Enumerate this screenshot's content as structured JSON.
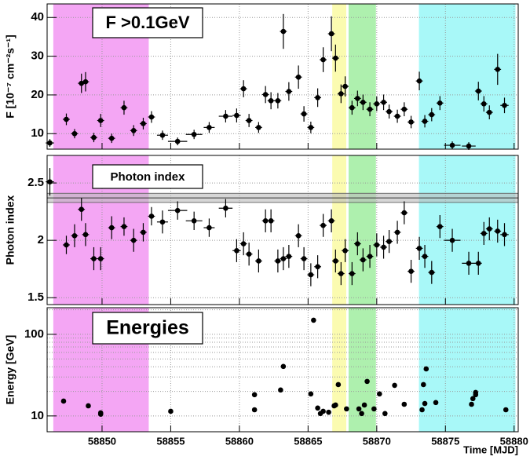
{
  "chart_data": [
    {
      "type": "scatter",
      "title": "F >0.1GeV",
      "ylabel": "F [10⁻⁷ cm⁻²s⁻¹]",
      "color": "#000000",
      "grid": true,
      "xlim": [
        58846,
        58880.3
      ],
      "xticks": [
        58850,
        58855,
        58860,
        58865,
        58870,
        58875,
        58880
      ],
      "ylim": [
        6,
        43.5
      ],
      "yticks": [
        10,
        20,
        30,
        40
      ],
      "bands": [
        {
          "start": 58846.45,
          "end": 58853.4,
          "color": "#f4a6f4"
        },
        {
          "start": 58866.76,
          "end": 58867.78,
          "color": "#fbfbb0"
        },
        {
          "start": 58867.95,
          "end": 58869.94,
          "color": "#aef0ae"
        },
        {
          "start": 58873.07,
          "end": 58880.1,
          "color": "#a8f8f8"
        }
      ],
      "x": [
        58846.2,
        58847.4,
        58848.0,
        58848.5,
        58848.8,
        58849.4,
        58849.9,
        58850.7,
        58851.6,
        58852.3,
        58853.0,
        58853.6,
        58854.4,
        58855.5,
        58856.7,
        58857.8,
        58859.0,
        58859.8,
        58860.3,
        58860.7,
        58861.4,
        58861.9,
        58862.3,
        58862.8,
        58863.2,
        58863.6,
        58864.3,
        58864.7,
        58865.2,
        58865.7,
        58866.1,
        58866.7,
        58867.0,
        58867.4,
        58867.7,
        58868.2,
        58868.6,
        58869.0,
        58869.5,
        58870.0,
        58870.5,
        58870.9,
        58871.5,
        58872.0,
        58872.5,
        58873.1,
        58873.5,
        58874.0,
        58874.6,
        58875.5,
        58876.7,
        58877.4,
        58877.8,
        58878.2,
        58878.8,
        58879.3
      ],
      "x_err": [
        0.3,
        0.25,
        0.25,
        0.25,
        0.25,
        0.25,
        0.25,
        0.25,
        0.25,
        0.25,
        0.25,
        0.25,
        0.4,
        0.7,
        0.6,
        0.4,
        0.5,
        0.3,
        0.25,
        0.25,
        0.25,
        0.25,
        0.25,
        0.25,
        0.25,
        0.25,
        0.25,
        0.25,
        0.25,
        0.25,
        0.25,
        0.25,
        0.25,
        0.25,
        0.25,
        0.25,
        0.25,
        0.25,
        0.25,
        0.25,
        0.25,
        0.25,
        0.25,
        0.25,
        0.25,
        0.25,
        0.25,
        0.25,
        0.25,
        0.6,
        0.5,
        0.25,
        0.25,
        0.25,
        0.25,
        0.3
      ],
      "values": [
        7.6,
        13.7,
        10.0,
        23.0,
        23.4,
        9.0,
        13.4,
        8.8,
        16.7,
        10.8,
        12.6,
        14.3,
        9.6,
        8.0,
        9.8,
        11.6,
        14.5,
        14.7,
        21.6,
        13.4,
        11.6,
        20.1,
        18.5,
        18.5,
        36.4,
        20.9,
        24.6,
        15.1,
        11.6,
        19.3,
        29.1,
        35.8,
        29.5,
        20.3,
        22.2,
        16.7,
        19.1,
        18.1,
        16.3,
        17.7,
        18.1,
        15.7,
        14.5,
        16.3,
        13.0,
        23.6,
        13.2,
        14.9,
        17.9,
        7.0,
        6.8,
        21.0,
        17.7,
        15.5,
        26.6,
        17.3
      ],
      "errors": [
        1,
        1.5,
        1.2,
        2.5,
        2.5,
        1.2,
        1.7,
        1.2,
        1.8,
        1.4,
        1.5,
        1.5,
        1.2,
        1,
        1.2,
        1.4,
        1.6,
        1.8,
        2.2,
        1.7,
        1.4,
        2.2,
        2.2,
        2,
        4.5,
        2.4,
        3,
        2,
        1.5,
        2.4,
        3.2,
        4.5,
        3.5,
        2.4,
        2.6,
        1.8,
        2,
        2,
        1.8,
        1.9,
        2,
        1.8,
        1.7,
        1.8,
        1.6,
        2.4,
        1.6,
        1.7,
        1.8,
        1,
        1,
        2.4,
        2,
        1.8,
        4,
        2
      ]
    },
    {
      "type": "scatter",
      "title": "Photon index",
      "ylabel": "Photon index",
      "color": "#000000",
      "grid": true,
      "xlim": [
        58846,
        58880.3
      ],
      "xticks": [
        58850,
        58855,
        58860,
        58865,
        58870,
        58875,
        58880
      ],
      "ylim": [
        1.44,
        2.74
      ],
      "yticks": [
        1.5,
        2,
        2.5
      ],
      "bands": [
        {
          "start": 58846.45,
          "end": 58853.4,
          "color": "#f4a6f4"
        },
        {
          "start": 58866.76,
          "end": 58867.78,
          "color": "#fbfbb0"
        },
        {
          "start": 58867.95,
          "end": 58869.94,
          "color": "#aef0ae"
        },
        {
          "start": 58873.07,
          "end": 58880.1,
          "color": "#a8f8f8"
        }
      ],
      "mean": 2.37,
      "mean_err": 0.04,
      "x": [
        58846.2,
        58847.4,
        58848.0,
        58848.5,
        58848.8,
        58849.4,
        58849.9,
        58850.7,
        58851.6,
        58852.3,
        58853.0,
        58853.6,
        58854.4,
        58855.5,
        58856.7,
        58857.8,
        58859.0,
        58859.8,
        58860.3,
        58860.7,
        58861.4,
        58861.9,
        58862.3,
        58862.8,
        58863.2,
        58863.6,
        58864.3,
        58864.7,
        58865.2,
        58865.7,
        58866.1,
        58866.7,
        58867.0,
        58867.4,
        58867.7,
        58868.2,
        58868.6,
        58869.0,
        58869.5,
        58870.0,
        58870.5,
        58870.9,
        58871.5,
        58872.0,
        58872.5,
        58873.1,
        58873.5,
        58874.0,
        58874.6,
        58875.5,
        58876.7,
        58877.4,
        58877.8,
        58878.2,
        58878.8,
        58879.3
      ],
      "x_err": [
        0.3,
        0.25,
        0.25,
        0.25,
        0.25,
        0.25,
        0.25,
        0.25,
        0.25,
        0.25,
        0.25,
        0.25,
        0.4,
        0.7,
        0.6,
        0.4,
        0.5,
        0.3,
        0.25,
        0.25,
        0.25,
        0.25,
        0.25,
        0.25,
        0.25,
        0.25,
        0.25,
        0.25,
        0.25,
        0.25,
        0.25,
        0.25,
        0.25,
        0.25,
        0.25,
        0.25,
        0.25,
        0.25,
        0.25,
        0.25,
        0.25,
        0.25,
        0.25,
        0.25,
        0.25,
        0.25,
        0.25,
        0.25,
        0.25,
        0.6,
        0.5,
        0.25,
        0.25,
        0.25,
        0.25,
        0.3
      ],
      "values": [
        2.51,
        1.96,
        2.04,
        2.27,
        2.05,
        1.84,
        1.84,
        2.11,
        2.12,
        2.0,
        2.07,
        2.21,
        2.16,
        2.26,
        2.17,
        2.11,
        2.28,
        1.91,
        1.97,
        1.88,
        1.82,
        2.17,
        2.17,
        1.82,
        1.84,
        1.86,
        2.04,
        1.84,
        1.7,
        1.77,
        2.13,
        2.17,
        1.82,
        1.71,
        1.91,
        1.71,
        1.97,
        1.83,
        1.86,
        1.96,
        1.94,
        1.99,
        2.07,
        2.24,
        1.73,
        1.93,
        1.86,
        1.72,
        2.12,
        2.0,
        1.8,
        1.8,
        2.06,
        2.1,
        2.08,
        2.05
      ],
      "errors": [
        0.12,
        0.08,
        0.1,
        0.1,
        0.1,
        0.1,
        0.1,
        0.1,
        0.08,
        0.1,
        0.08,
        0.08,
        0.1,
        0.08,
        0.08,
        0.08,
        0.08,
        0.1,
        0.1,
        0.1,
        0.1,
        0.1,
        0.1,
        0.1,
        0.1,
        0.1,
        0.1,
        0.1,
        0.1,
        0.1,
        0.1,
        0.1,
        0.1,
        0.1,
        0.1,
        0.1,
        0.1,
        0.1,
        0.1,
        0.1,
        0.1,
        0.1,
        0.1,
        0.1,
        0.1,
        0.1,
        0.1,
        0.1,
        0.1,
        0.1,
        0.1,
        0.1,
        0.1,
        0.1,
        0.1,
        0.1
      ]
    },
    {
      "type": "scatter",
      "title": "Energies",
      "ylabel": "Energy [GeV]",
      "xlabel": "Time [MJD]",
      "color": "#000000",
      "grid": true,
      "log_y": true,
      "xlim": [
        58846,
        58880.3
      ],
      "xticks": [
        58850,
        58855,
        58860,
        58865,
        58870,
        58875,
        58880
      ],
      "ylim": [
        6.4,
        212
      ],
      "yticks": [
        10,
        100
      ],
      "minor_yticks": [
        20,
        30,
        40,
        50,
        60,
        70,
        80,
        90,
        200
      ],
      "bands": [
        {
          "start": 58846.45,
          "end": 58853.4,
          "color": "#f4a6f4"
        },
        {
          "start": 58866.76,
          "end": 58867.78,
          "color": "#fbfbb0"
        },
        {
          "start": 58867.95,
          "end": 58869.94,
          "color": "#aef0ae"
        },
        {
          "start": 58873.07,
          "end": 58880.1,
          "color": "#a8f8f8"
        }
      ],
      "x": [
        58847.2,
        58849.0,
        58849.9,
        58849.9,
        58855.0,
        58861.1,
        58861.1,
        58863.0,
        58863.2,
        58865.2,
        58865.4,
        58865.7,
        58865.9,
        58866.1,
        58866.5,
        58866.9,
        58867.0,
        58867.2,
        58867.8,
        58868.7,
        58868.9,
        58869.1,
        58869.3,
        58869.8,
        58870.2,
        58870.6,
        58871.3,
        58872.0,
        58873.3,
        58873.4,
        58873.6,
        58873.5,
        58874.3,
        58876.9,
        58877.0,
        58877.2,
        58877.2,
        58879.4
      ],
      "values": [
        15.2,
        13.3,
        10.9,
        10.5,
        11.4,
        18.2,
        11.9,
        20.8,
        40.4,
        18.6,
        149,
        12.5,
        10.7,
        11.4,
        11.1,
        13.3,
        13.6,
        24.2,
        12.2,
        12.2,
        10.7,
        13.6,
        26.5,
        12.2,
        18.6,
        10.7,
        23.7,
        13.9,
        11.9,
        24.2,
        37.7,
        14.2,
        14.6,
        13.9,
        16.3,
        18.2,
        19.4,
        11.9
      ]
    }
  ]
}
